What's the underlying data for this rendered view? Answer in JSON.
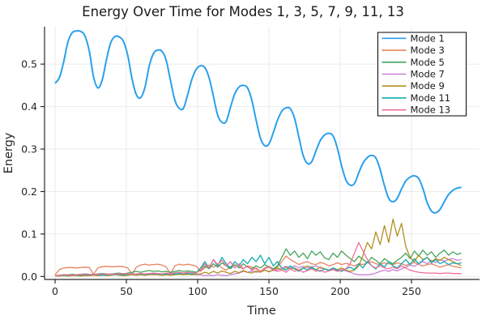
{
  "chart_data": {
    "type": "line",
    "title": "Energy Over Time for Modes 1, 3, 5, 7, 9, 11, 13",
    "xlabel": "Time",
    "ylabel": "Energy",
    "xlim": [
      -7.4,
      297.7
    ],
    "ylim": [
      -0.007,
      0.588
    ],
    "xticks": [
      0,
      50,
      100,
      150,
      200,
      250
    ],
    "yticks": [
      0.0,
      0.1,
      0.2,
      0.3,
      0.4,
      0.5
    ],
    "grid": true,
    "legend_position": "top-right",
    "background_color": "#ffffff",
    "grid_color": "#ebebeb",
    "spine_color": "#2a2a2a",
    "x": [
      0,
      3,
      6,
      9,
      12,
      15,
      18,
      21,
      24,
      27,
      30,
      33,
      36,
      39,
      42,
      45,
      48,
      51,
      54,
      57,
      60,
      63,
      66,
      69,
      72,
      75,
      78,
      81,
      84,
      87,
      90,
      93,
      96,
      99,
      102,
      105,
      108,
      111,
      114,
      117,
      120,
      123,
      126,
      129,
      132,
      135,
      138,
      141,
      144,
      147,
      150,
      153,
      156,
      159,
      162,
      165,
      168,
      171,
      174,
      177,
      180,
      183,
      186,
      189,
      192,
      195,
      198,
      201,
      204,
      207,
      210,
      213,
      216,
      219,
      222,
      225,
      228,
      231,
      234,
      237,
      240,
      243,
      246,
      249,
      252,
      255,
      258,
      261,
      264,
      267,
      270,
      273,
      276,
      279,
      282,
      285
    ],
    "series": [
      {
        "name": "Mode 1",
        "color": "#2AA0EC",
        "smooth": true,
        "line_width": 2,
        "values": [
          0.455,
          0.468,
          0.505,
          0.552,
          0.574,
          0.578,
          0.577,
          0.566,
          0.53,
          0.47,
          0.444,
          0.462,
          0.51,
          0.55,
          0.565,
          0.564,
          0.553,
          0.52,
          0.465,
          0.428,
          0.421,
          0.445,
          0.495,
          0.525,
          0.533,
          0.53,
          0.508,
          0.46,
          0.415,
          0.396,
          0.396,
          0.428,
          0.465,
          0.488,
          0.496,
          0.492,
          0.468,
          0.425,
          0.38,
          0.363,
          0.365,
          0.398,
          0.43,
          0.446,
          0.45,
          0.444,
          0.415,
          0.368,
          0.326,
          0.308,
          0.312,
          0.338,
          0.368,
          0.389,
          0.397,
          0.395,
          0.372,
          0.328,
          0.285,
          0.266,
          0.27,
          0.296,
          0.32,
          0.333,
          0.337,
          0.331,
          0.302,
          0.26,
          0.227,
          0.215,
          0.219,
          0.244,
          0.267,
          0.28,
          0.285,
          0.279,
          0.252,
          0.214,
          0.184,
          0.176,
          0.184,
          0.206,
          0.225,
          0.234,
          0.237,
          0.231,
          0.207,
          0.174,
          0.154,
          0.15,
          0.158,
          0.176,
          0.193,
          0.203,
          0.208,
          0.21
        ]
      },
      {
        "name": "Mode 3",
        "color": "#E8825F",
        "smooth": false,
        "line_width": 1.3,
        "values": [
          0.004,
          0.016,
          0.02,
          0.021,
          0.021,
          0.02,
          0.021,
          0.022,
          0.021,
          0.005,
          0.02,
          0.023,
          0.024,
          0.023,
          0.023,
          0.024,
          0.023,
          0.02,
          0.005,
          0.022,
          0.027,
          0.029,
          0.027,
          0.028,
          0.029,
          0.027,
          0.022,
          0.006,
          0.025,
          0.029,
          0.027,
          0.029,
          0.027,
          0.024,
          0.012,
          0.02,
          0.027,
          0.022,
          0.028,
          0.02,
          0.015,
          0.023,
          0.027,
          0.022,
          0.018,
          0.025,
          0.022,
          0.018,
          0.012,
          0.02,
          0.024,
          0.018,
          0.022,
          0.035,
          0.048,
          0.04,
          0.034,
          0.028,
          0.032,
          0.035,
          0.03,
          0.028,
          0.033,
          0.03,
          0.025,
          0.028,
          0.032,
          0.028,
          0.031,
          0.028,
          0.025,
          0.03,
          0.028,
          0.032,
          0.035,
          0.03,
          0.028,
          0.032,
          0.03,
          0.028,
          0.032,
          0.03,
          0.026,
          0.03,
          0.033,
          0.028,
          0.025,
          0.028,
          0.03,
          0.026,
          0.022,
          0.025,
          0.028,
          0.024,
          0.022,
          0.02
        ]
      },
      {
        "name": "Mode 5",
        "color": "#46A45C",
        "smooth": false,
        "line_width": 1.3,
        "values": [
          0.002,
          0.003,
          0.004,
          0.004,
          0.005,
          0.004,
          0.005,
          0.006,
          0.005,
          0.004,
          0.006,
          0.007,
          0.006,
          0.005,
          0.007,
          0.008,
          0.006,
          0.008,
          0.01,
          0.012,
          0.01,
          0.012,
          0.014,
          0.012,
          0.013,
          0.011,
          0.012,
          0.01,
          0.012,
          0.014,
          0.012,
          0.013,
          0.012,
          0.01,
          0.015,
          0.025,
          0.018,
          0.03,
          0.022,
          0.032,
          0.025,
          0.018,
          0.028,
          0.02,
          0.03,
          0.022,
          0.018,
          0.025,
          0.02,
          0.028,
          0.022,
          0.018,
          0.025,
          0.045,
          0.065,
          0.05,
          0.06,
          0.045,
          0.055,
          0.042,
          0.06,
          0.05,
          0.058,
          0.044,
          0.04,
          0.055,
          0.045,
          0.06,
          0.05,
          0.042,
          0.035,
          0.048,
          0.04,
          0.032,
          0.045,
          0.038,
          0.03,
          0.042,
          0.035,
          0.03,
          0.038,
          0.045,
          0.055,
          0.042,
          0.06,
          0.048,
          0.062,
          0.05,
          0.058,
          0.045,
          0.055,
          0.062,
          0.05,
          0.058,
          0.052,
          0.055
        ]
      },
      {
        "name": "Mode 7",
        "color": "#CB7FD6",
        "smooth": false,
        "line_width": 1.3,
        "values": [
          0.001,
          0.002,
          0.002,
          0.003,
          0.002,
          0.003,
          0.003,
          0.002,
          0.003,
          0.004,
          0.003,
          0.004,
          0.003,
          0.004,
          0.005,
          0.004,
          0.003,
          0.004,
          0.005,
          0.004,
          0.005,
          0.006,
          0.005,
          0.004,
          0.005,
          0.006,
          0.005,
          0.004,
          0.005,
          0.006,
          0.005,
          0.006,
          0.005,
          0.004,
          0.004,
          0.002,
          0.003,
          0.002,
          0.004,
          0.003,
          0.002,
          0.004,
          0.006,
          0.008,
          0.012,
          0.01,
          0.013,
          0.01,
          0.012,
          0.015,
          0.012,
          0.014,
          0.016,
          0.02,
          0.024,
          0.02,
          0.025,
          0.021,
          0.024,
          0.02,
          0.023,
          0.025,
          0.02,
          0.018,
          0.015,
          0.017,
          0.014,
          0.016,
          0.013,
          0.01,
          0.006,
          0.004,
          0.004,
          0.004,
          0.005,
          0.008,
          0.012,
          0.015,
          0.012,
          0.016,
          0.013,
          0.018,
          0.022,
          0.027,
          0.024,
          0.03,
          0.035,
          0.03,
          0.038,
          0.033,
          0.04,
          0.036,
          0.04,
          0.042,
          0.038,
          0.04
        ]
      },
      {
        "name": "Mode 9",
        "color": "#B2901F",
        "smooth": false,
        "line_width": 1.3,
        "values": [
          0.001,
          0.001,
          0.002,
          0.001,
          0.002,
          0.002,
          0.001,
          0.002,
          0.002,
          0.003,
          0.002,
          0.003,
          0.002,
          0.003,
          0.004,
          0.003,
          0.002,
          0.003,
          0.004,
          0.003,
          0.004,
          0.003,
          0.004,
          0.005,
          0.004,
          0.003,
          0.004,
          0.003,
          0.004,
          0.005,
          0.004,
          0.005,
          0.004,
          0.005,
          0.006,
          0.01,
          0.007,
          0.012,
          0.008,
          0.013,
          0.01,
          0.007,
          0.012,
          0.009,
          0.014,
          0.01,
          0.008,
          0.013,
          0.01,
          0.015,
          0.011,
          0.015,
          0.02,
          0.015,
          0.022,
          0.017,
          0.02,
          0.015,
          0.02,
          0.025,
          0.02,
          0.016,
          0.022,
          0.018,
          0.015,
          0.02,
          0.016,
          0.02,
          0.015,
          0.012,
          0.015,
          0.025,
          0.05,
          0.08,
          0.065,
          0.105,
          0.075,
          0.12,
          0.08,
          0.135,
          0.095,
          0.125,
          0.07,
          0.045,
          0.035,
          0.05,
          0.04,
          0.045,
          0.035,
          0.042,
          0.038,
          0.045,
          0.04,
          0.035,
          0.03,
          0.025
        ]
      },
      {
        "name": "Mode 11",
        "color": "#14ABB0",
        "smooth": false,
        "line_width": 1.3,
        "values": [
          0.002,
          0.003,
          0.002,
          0.003,
          0.004,
          0.003,
          0.004,
          0.003,
          0.004,
          0.005,
          0.004,
          0.003,
          0.004,
          0.005,
          0.004,
          0.005,
          0.004,
          0.005,
          0.006,
          0.005,
          0.006,
          0.005,
          0.006,
          0.007,
          0.006,
          0.005,
          0.006,
          0.007,
          0.006,
          0.007,
          0.008,
          0.007,
          0.006,
          0.008,
          0.02,
          0.035,
          0.02,
          0.04,
          0.025,
          0.045,
          0.03,
          0.02,
          0.035,
          0.025,
          0.04,
          0.03,
          0.045,
          0.035,
          0.05,
          0.03,
          0.045,
          0.025,
          0.035,
          0.02,
          0.015,
          0.025,
          0.018,
          0.012,
          0.02,
          0.015,
          0.022,
          0.016,
          0.012,
          0.018,
          0.014,
          0.02,
          0.015,
          0.012,
          0.018,
          0.022,
          0.016,
          0.03,
          0.02,
          0.035,
          0.025,
          0.018,
          0.03,
          0.022,
          0.035,
          0.025,
          0.02,
          0.03,
          0.04,
          0.028,
          0.042,
          0.03,
          0.038,
          0.045,
          0.032,
          0.04,
          0.03,
          0.035,
          0.028,
          0.032,
          0.03,
          0.032
        ]
      },
      {
        "name": "Mode 13",
        "color": "#EF6F9B",
        "smooth": false,
        "line_width": 1.3,
        "values": [
          0.002,
          0.003,
          0.003,
          0.004,
          0.003,
          0.004,
          0.005,
          0.004,
          0.005,
          0.004,
          0.005,
          0.006,
          0.005,
          0.006,
          0.005,
          0.006,
          0.007,
          0.006,
          0.005,
          0.006,
          0.007,
          0.006,
          0.007,
          0.008,
          0.007,
          0.006,
          0.008,
          0.007,
          0.009,
          0.01,
          0.008,
          0.01,
          0.009,
          0.008,
          0.015,
          0.03,
          0.02,
          0.04,
          0.028,
          0.038,
          0.025,
          0.035,
          0.02,
          0.03,
          0.018,
          0.025,
          0.015,
          0.02,
          0.012,
          0.018,
          0.022,
          0.015,
          0.012,
          0.015,
          0.01,
          0.018,
          0.012,
          0.016,
          0.01,
          0.014,
          0.018,
          0.012,
          0.015,
          0.01,
          0.013,
          0.016,
          0.012,
          0.015,
          0.018,
          0.03,
          0.055,
          0.08,
          0.06,
          0.04,
          0.025,
          0.02,
          0.025,
          0.02,
          0.018,
          0.022,
          0.018,
          0.025,
          0.02,
          0.015,
          0.012,
          0.01,
          0.009,
          0.008,
          0.008,
          0.008,
          0.007,
          0.008,
          0.008,
          0.007,
          0.007,
          0.007
        ]
      }
    ]
  }
}
